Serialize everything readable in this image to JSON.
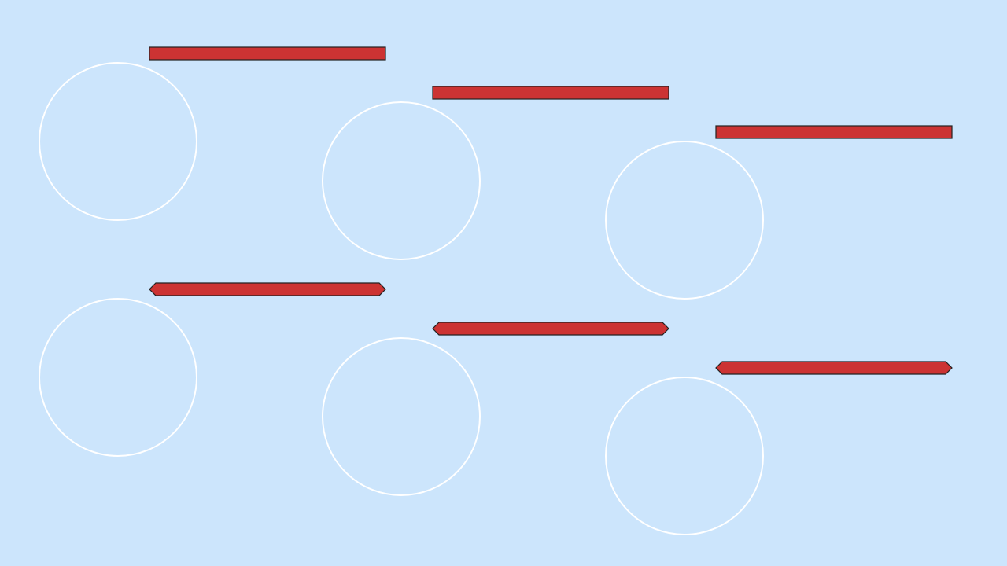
{
  "colors": {
    "background": "#cce5fc",
    "bar_fill": "#cc3333",
    "bar_stroke": "#222222",
    "circle_stroke": "#ffffff"
  },
  "icons": [
    "circle-outline",
    "rectangular-bar",
    "hexagonal-bar"
  ]
}
